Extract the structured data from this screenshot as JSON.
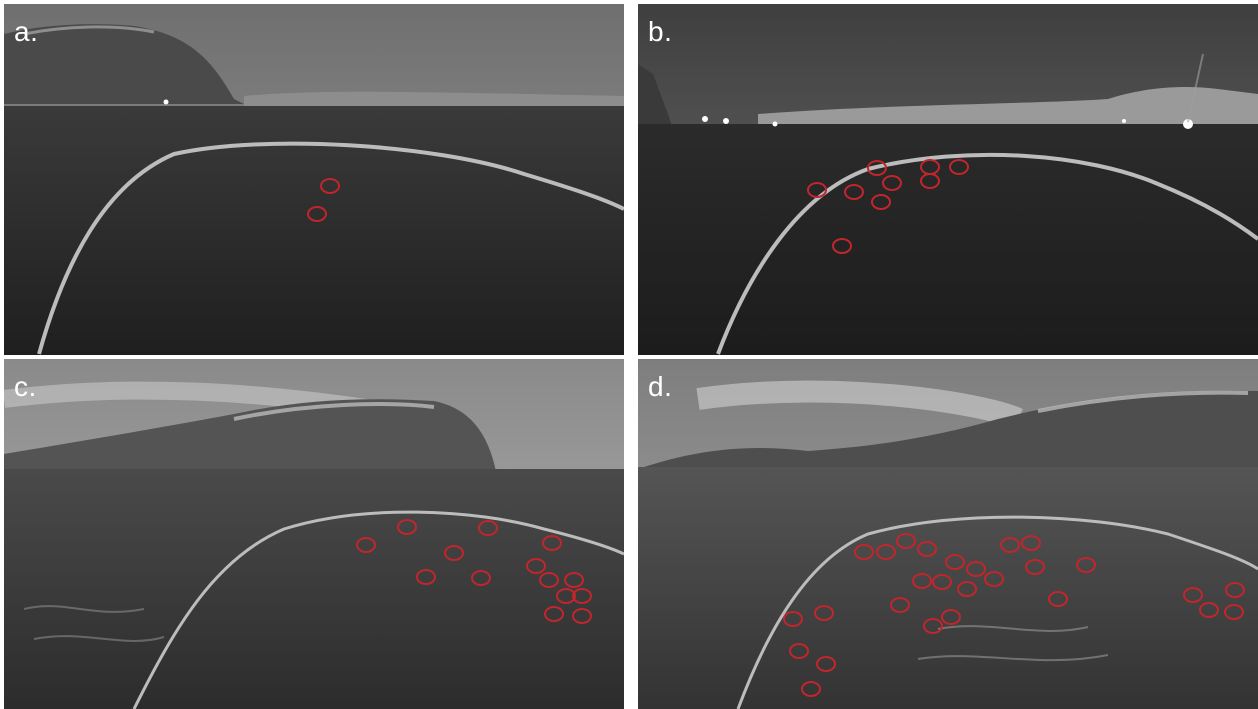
{
  "figure": {
    "panels": [
      {
        "id": "a",
        "label": "a.",
        "marker_count": 2
      },
      {
        "id": "b",
        "label": "b.",
        "marker_count": 9
      },
      {
        "id": "c",
        "label": "c.",
        "marker_count": 14
      },
      {
        "id": "d",
        "label": "d.",
        "marker_count": 27
      }
    ],
    "colors": {
      "marker": "#c0262b",
      "background": "#ffffff",
      "label": "#ffffff"
    }
  }
}
